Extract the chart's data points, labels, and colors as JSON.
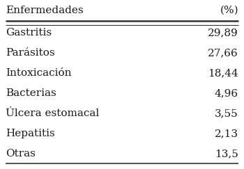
{
  "col1_header": "Enfermedades",
  "col2_header": "(%)",
  "rows": [
    [
      "Gastritis",
      "29,89"
    ],
    [
      "Parásitos",
      "27,66"
    ],
    [
      "Intoxicación",
      "18,44"
    ],
    [
      "Bacterias",
      "4,96"
    ],
    [
      "Úlcera estomacal",
      "3,55"
    ],
    [
      "Hepatitis",
      "2,13"
    ],
    [
      "Otras",
      "13,5"
    ]
  ],
  "background_color": "#ffffff",
  "text_color": "#1a1a1a",
  "header_fontsize": 11.0,
  "row_fontsize": 11.0,
  "line_color": "#333333"
}
